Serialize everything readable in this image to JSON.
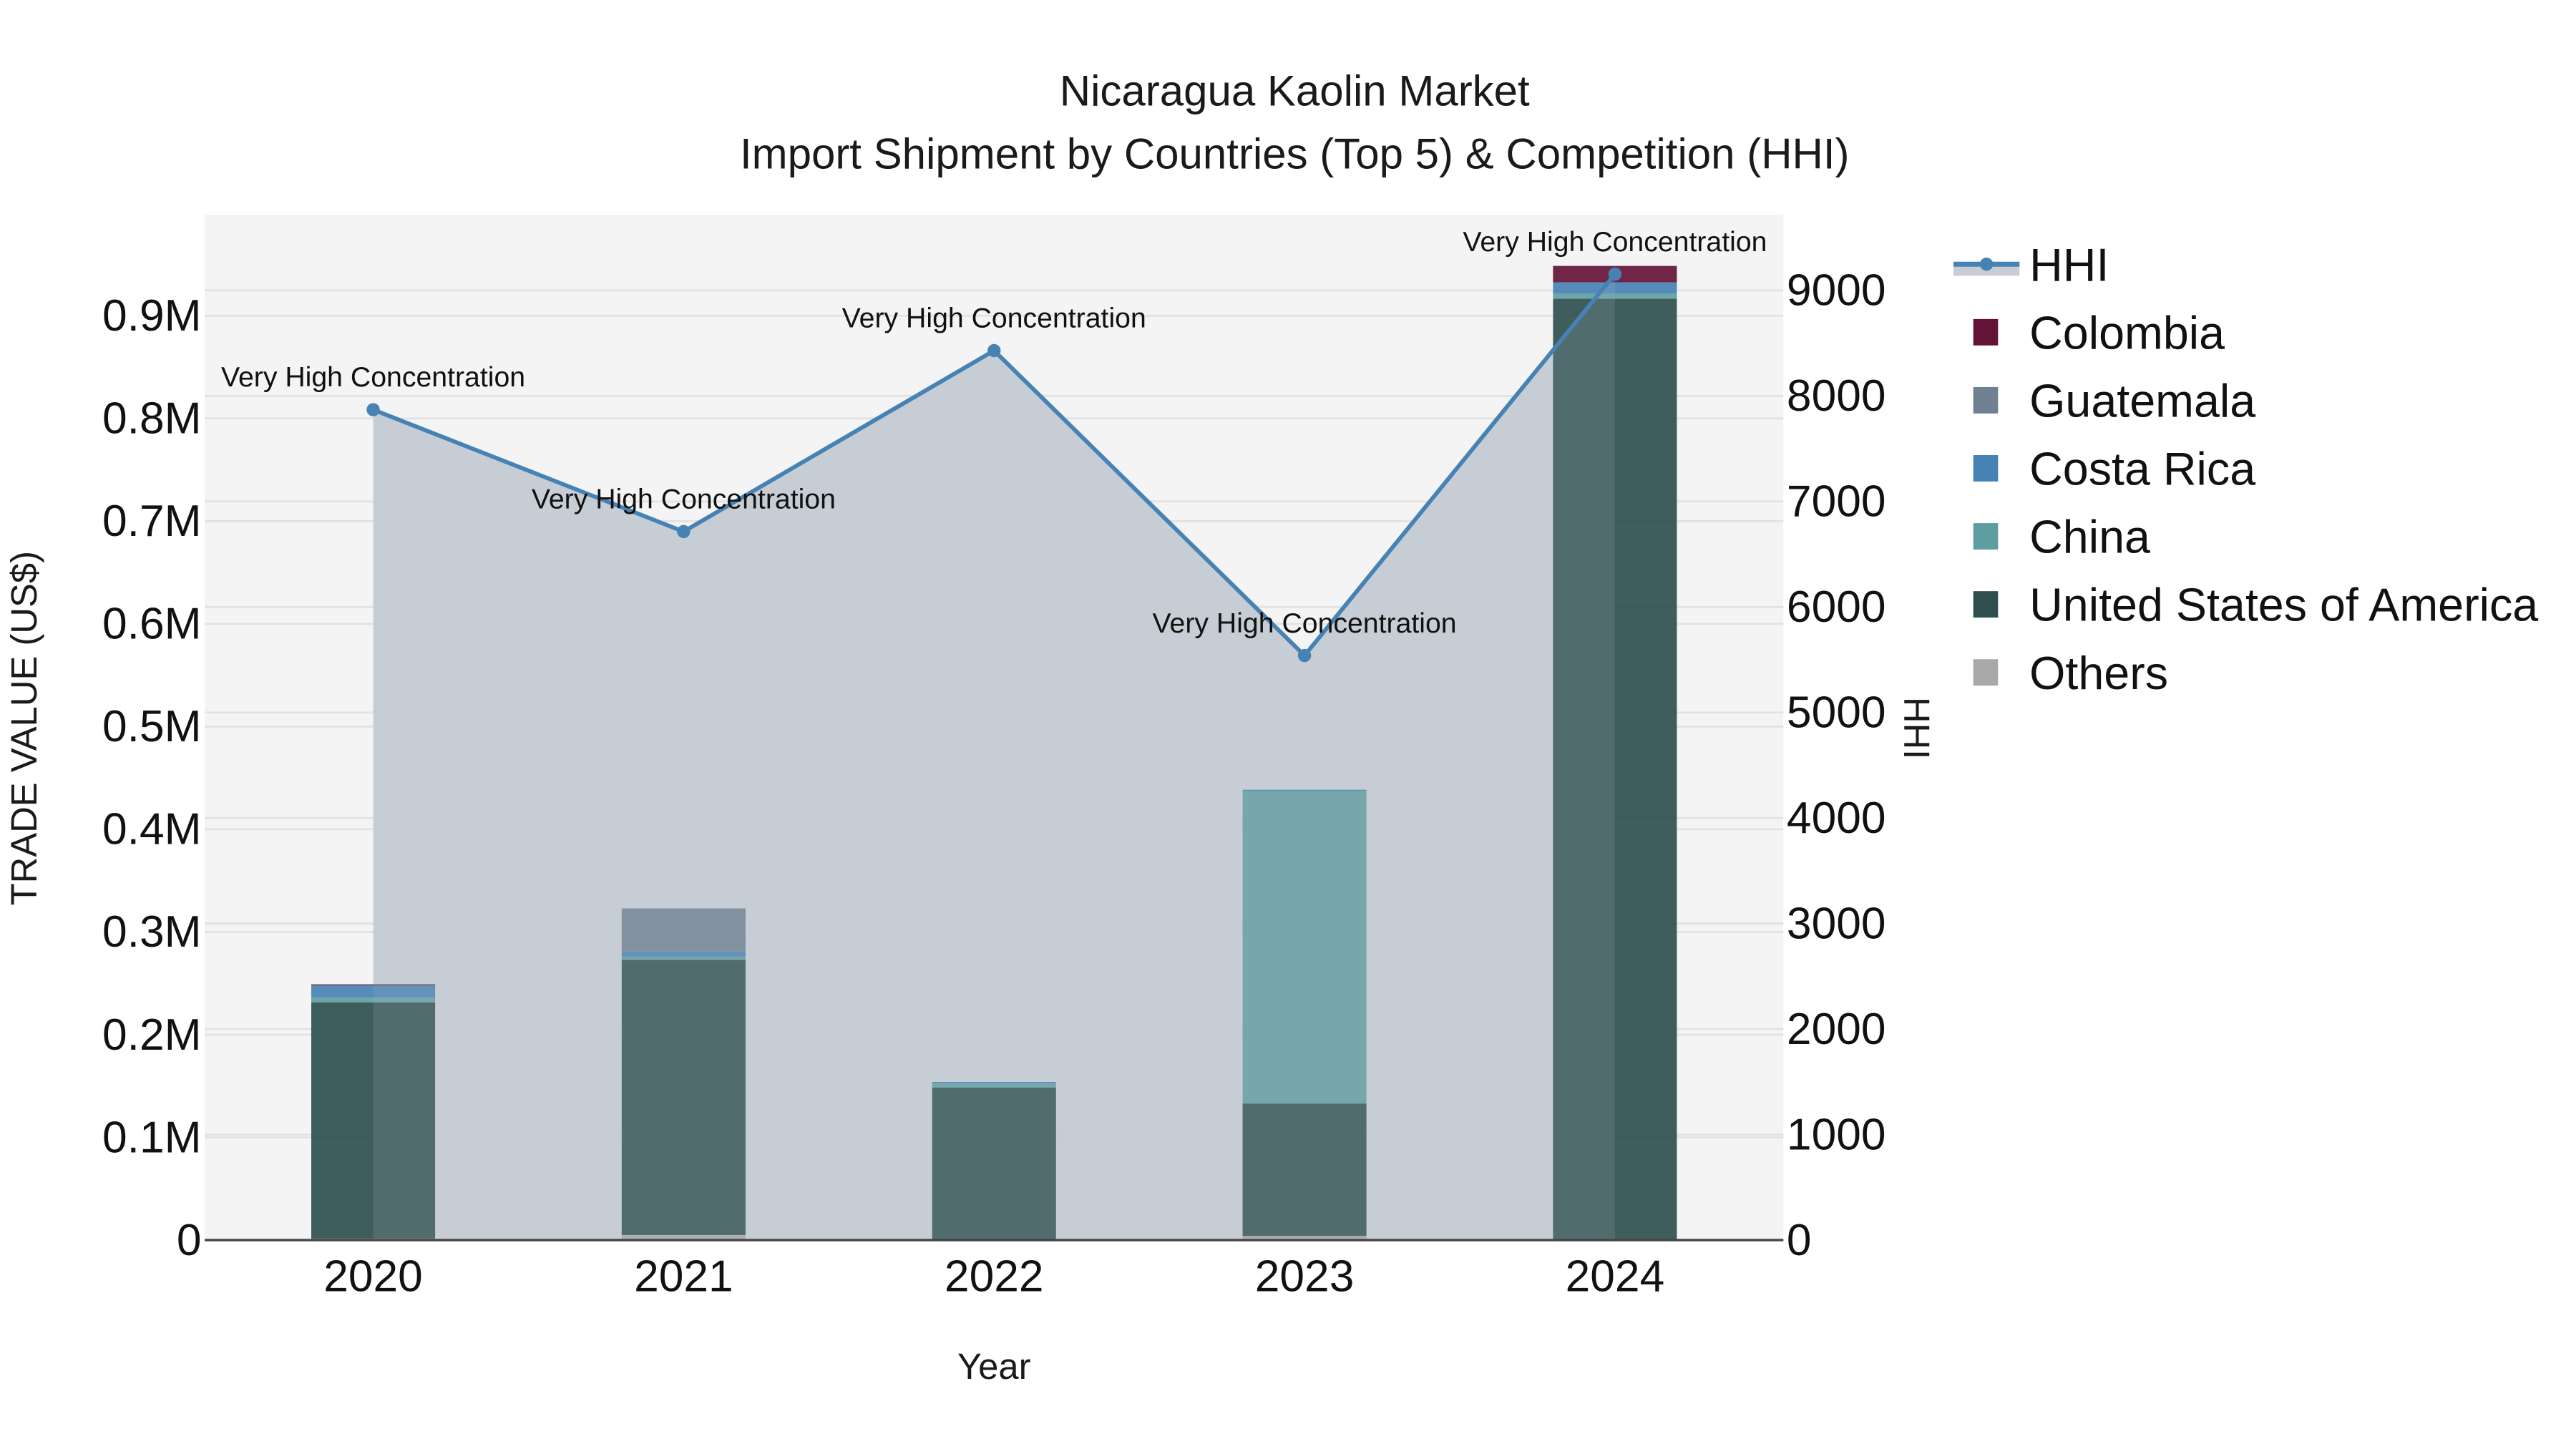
{
  "title": {
    "line1": "Nicaragua Kaolin Market",
    "line2": "Import Shipment by Countries (Top 5) & Competition (HHI)"
  },
  "axes": {
    "x_label": "Year",
    "y_left_label": "TRADE VALUE (US$)",
    "y_right_label": "HHI",
    "y_left_ticks": [
      "0",
      "0.1M",
      "0.2M",
      "0.3M",
      "0.4M",
      "0.5M",
      "0.6M",
      "0.7M",
      "0.8M",
      "0.9M"
    ],
    "y_right_ticks": [
      "0",
      "1000",
      "2000",
      "3000",
      "4000",
      "5000",
      "6000",
      "7000",
      "8000",
      "9000"
    ]
  },
  "legend": {
    "items": [
      {
        "label": "HHI",
        "type": "line",
        "color": "#4682b4"
      },
      {
        "label": "Colombia",
        "type": "bar",
        "color": "#641436"
      },
      {
        "label": "Guatemala",
        "type": "bar",
        "color": "#708090"
      },
      {
        "label": "Costa Rica",
        "type": "bar",
        "color": "#4682b4"
      },
      {
        "label": "China",
        "type": "bar",
        "color": "#5f9ea0"
      },
      {
        "label": "United States of America",
        "type": "bar",
        "color": "#2f4f4f"
      },
      {
        "label": "Others",
        "type": "bar",
        "color": "#a9a9a9"
      }
    ]
  },
  "annotations": [
    {
      "year": "2020",
      "text": "Very High Concentration"
    },
    {
      "year": "2021",
      "text": "Very High Concentration"
    },
    {
      "year": "2022",
      "text": "Very High Concentration"
    },
    {
      "year": "2023",
      "text": "Very High Concentration"
    },
    {
      "year": "2024",
      "text": "Very High Concentration"
    }
  ],
  "colors": {
    "plot_bg": "#f4f4f4",
    "hhi_fill": "#c8cdd5",
    "hhi_line": "#4682b4",
    "gridline": "#e2e2e2",
    "axis_line": "#444444"
  },
  "chart_data": {
    "type": "bar",
    "title": "Nicaragua Kaolin Market — Import Shipment by Countries (Top 5) & Competition (HHI)",
    "xlabel": "Year",
    "ylabel": "TRADE VALUE (US$)",
    "y2label": "HHI",
    "ylim": [
      0,
      1000000
    ],
    "y2lim": [
      0,
      9750
    ],
    "barmode": "stack",
    "categories": [
      "2020",
      "2021",
      "2022",
      "2023",
      "2024"
    ],
    "series": [
      {
        "name": "Others",
        "color": "#a9a9a9",
        "values": [
          1500,
          5000,
          500,
          4000,
          500
        ]
      },
      {
        "name": "United States of America",
        "color": "#2f4f4f",
        "values": [
          230000,
          268000,
          148000,
          129000,
          916000
        ]
      },
      {
        "name": "China",
        "color": "#5f9ea0",
        "values": [
          4500,
          3000,
          4000,
          304000,
          5000
        ]
      },
      {
        "name": "Costa Rica",
        "color": "#4682b4",
        "values": [
          12000,
          5000,
          1500,
          1500,
          11000
        ]
      },
      {
        "name": "Guatemala",
        "color": "#708090",
        "values": [
          0,
          42000,
          0,
          0,
          0
        ]
      },
      {
        "name": "Colombia",
        "color": "#641436",
        "values": [
          1000,
          0,
          0,
          0,
          16000
        ]
      }
    ],
    "totals": [
      249000,
      323000,
      154000,
      438500,
      948500
    ],
    "hhi": {
      "name": "HHI",
      "axis": "right",
      "type": "line+area",
      "values": [
        7870,
        6715,
        8430,
        5540,
        9155
      ],
      "annotations": [
        "Very High Concentration",
        "Very High Concentration",
        "Very High Concentration",
        "Very High Concentration",
        "Very High Concentration"
      ]
    },
    "legend_position": "right",
    "grid": true
  }
}
